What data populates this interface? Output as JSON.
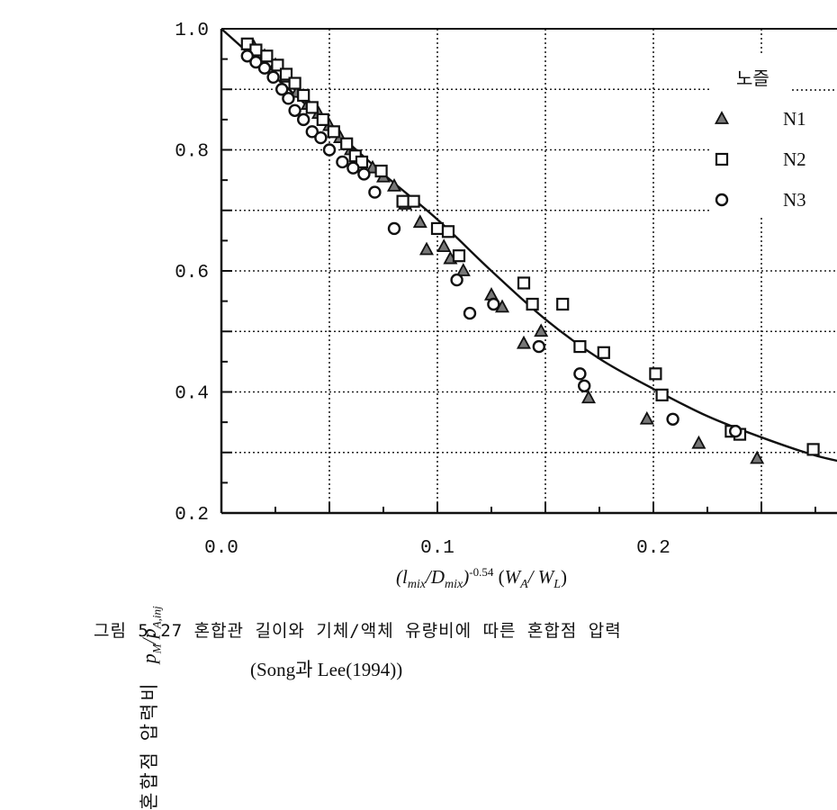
{
  "chart_data": {
    "type": "scatter",
    "xlabel": "(l_mix/D_mix)^-0.54 (W_A/W_L)",
    "ylabel": "혼합점 압력비  p_M/p_A,inj",
    "xlim": [
      0.0,
      0.3
    ],
    "ylim": [
      0.2,
      1.0
    ],
    "x_ticks": [
      "0.0",
      "0.1",
      "0.2"
    ],
    "y_ticks": [
      "0.2",
      "0.4",
      "0.6",
      "0.8",
      "1.0"
    ],
    "grid": true,
    "legend": {
      "title": "노즐",
      "placement": "top-right"
    },
    "series": [
      {
        "name": "N1",
        "marker": "triangle",
        "x": [
          0.015,
          0.02,
          0.025,
          0.03,
          0.035,
          0.04,
          0.045,
          0.05,
          0.055,
          0.06,
          0.07,
          0.075,
          0.08,
          0.085,
          0.092,
          0.095,
          0.103,
          0.106,
          0.112,
          0.125,
          0.13,
          0.14,
          0.148,
          0.17,
          0.197,
          0.221,
          0.248
        ],
        "y": [
          0.97,
          0.955,
          0.94,
          0.92,
          0.895,
          0.875,
          0.86,
          0.84,
          0.82,
          0.8,
          0.77,
          0.755,
          0.74,
          0.71,
          0.68,
          0.635,
          0.64,
          0.62,
          0.6,
          0.56,
          0.54,
          0.48,
          0.5,
          0.39,
          0.355,
          0.315,
          0.29
        ]
      },
      {
        "name": "N2",
        "marker": "square",
        "x": [
          0.012,
          0.016,
          0.021,
          0.026,
          0.03,
          0.034,
          0.038,
          0.042,
          0.047,
          0.052,
          0.058,
          0.062,
          0.065,
          0.074,
          0.084,
          0.089,
          0.1,
          0.105,
          0.11,
          0.14,
          0.144,
          0.158,
          0.166,
          0.177,
          0.201,
          0.204,
          0.236,
          0.24,
          0.274
        ],
        "y": [
          0.975,
          0.965,
          0.955,
          0.94,
          0.925,
          0.91,
          0.89,
          0.87,
          0.85,
          0.83,
          0.81,
          0.79,
          0.78,
          0.765,
          0.715,
          0.715,
          0.67,
          0.665,
          0.625,
          0.58,
          0.545,
          0.545,
          0.475,
          0.465,
          0.43,
          0.395,
          0.335,
          0.33,
          0.305
        ]
      },
      {
        "name": "N3",
        "marker": "circle",
        "x": [
          0.012,
          0.016,
          0.02,
          0.024,
          0.028,
          0.031,
          0.034,
          0.038,
          0.042,
          0.046,
          0.05,
          0.056,
          0.061,
          0.066,
          0.071,
          0.08,
          0.109,
          0.115,
          0.126,
          0.147,
          0.166,
          0.168,
          0.209,
          0.238
        ],
        "y": [
          0.955,
          0.945,
          0.935,
          0.92,
          0.9,
          0.885,
          0.865,
          0.85,
          0.83,
          0.82,
          0.8,
          0.78,
          0.77,
          0.76,
          0.73,
          0.67,
          0.585,
          0.53,
          0.545,
          0.475,
          0.43,
          0.41,
          0.355,
          0.335
        ]
      }
    ],
    "fit_curve": {
      "x": [
        0.0,
        0.025,
        0.05,
        0.075,
        0.1,
        0.125,
        0.15,
        0.175,
        0.2,
        0.225,
        0.25,
        0.275,
        0.3
      ],
      "y": [
        1.0,
        0.92,
        0.84,
        0.76,
        0.685,
        0.6,
        0.52,
        0.455,
        0.405,
        0.36,
        0.325,
        0.295,
        0.275
      ]
    }
  },
  "caption": {
    "line1": "그림 5.27 혼합관 길이와 기체/액체 유량비에 따른 혼합점 압력",
    "line2": "(Song과 Lee(1994))"
  }
}
